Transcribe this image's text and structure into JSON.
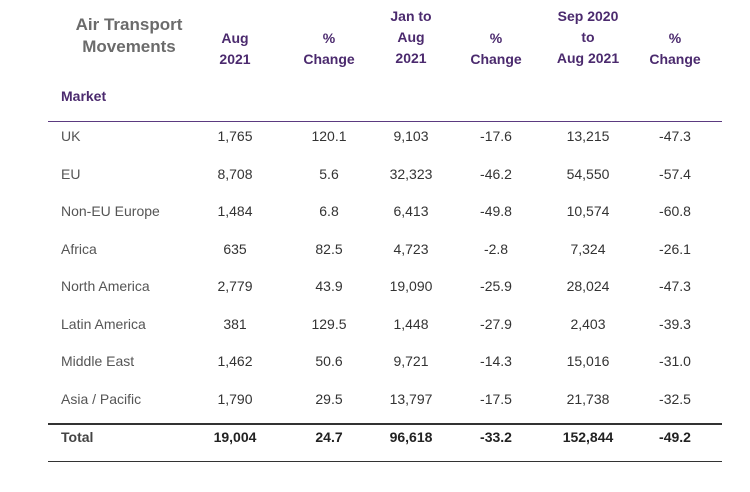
{
  "table": {
    "title_lines": [
      "Air Transport",
      "Movements"
    ],
    "columns": [
      {
        "lines": [
          "Aug",
          "2021"
        ]
      },
      {
        "lines": [
          "%",
          "Change"
        ]
      },
      {
        "lines": [
          "Jan to",
          "Aug",
          "2021"
        ]
      },
      {
        "lines": [
          "%",
          "Change"
        ]
      },
      {
        "lines": [
          "Sep 2020",
          "to",
          "Aug 2021"
        ]
      },
      {
        "lines": [
          "%",
          "Change"
        ]
      }
    ],
    "row_header": "Market",
    "rows": [
      {
        "market": "UK",
        "values": [
          "1,765",
          "120.1",
          "9,103",
          "-17.6",
          "13,215",
          "-47.3"
        ]
      },
      {
        "market": "EU",
        "values": [
          "8,708",
          "5.6",
          "32,323",
          "-46.2",
          "54,550",
          "-57.4"
        ]
      },
      {
        "market": "Non-EU Europe",
        "values": [
          "1,484",
          "6.8",
          "6,413",
          "-49.8",
          "10,574",
          "-60.8"
        ]
      },
      {
        "market": "Africa",
        "values": [
          "635",
          "82.5",
          "4,723",
          "-2.8",
          "7,324",
          "-26.1"
        ]
      },
      {
        "market": "North America",
        "values": [
          "2,779",
          "43.9",
          "19,090",
          "-25.9",
          "28,024",
          "-47.3"
        ]
      },
      {
        "market": "Latin America",
        "values": [
          "381",
          "129.5",
          "1,448",
          "-27.9",
          "2,403",
          "-39.3"
        ]
      },
      {
        "market": "Middle East",
        "values": [
          "1,462",
          "50.6",
          "9,721",
          "-14.3",
          "15,016",
          "-31.0"
        ]
      },
      {
        "market": "Asia / Pacific",
        "values": [
          "1,790",
          "29.5",
          "13,797",
          "-17.5",
          "21,738",
          "-32.5"
        ]
      }
    ],
    "total": {
      "market": "Total",
      "values": [
        "19,004",
        "24.7",
        "96,618",
        "-33.2",
        "152,844",
        "-49.2"
      ]
    }
  },
  "colors": {
    "header_purple": "#4b2a6e",
    "rule_purple": "#5b3a80",
    "title_grey": "#6b6b6b"
  }
}
